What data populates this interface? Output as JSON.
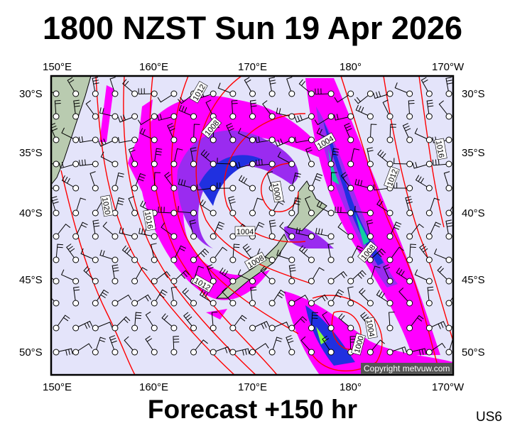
{
  "title": "1800 NZST Sun 19 Apr 2026",
  "footer": "Forecast +150 hr",
  "model_code": "US6",
  "copyright": "Copyright metvuw.com",
  "axes": {
    "longitudes": [
      "150°E",
      "160°E",
      "170°E",
      "180°",
      "170°W"
    ],
    "latitudes": [
      "30°S",
      "35°S",
      "40°S",
      "45°S",
      "50°S"
    ]
  },
  "isobar_labels": [
    "1012",
    "1008",
    "1004",
    "1016",
    "1012",
    "1000",
    "1020",
    "1016",
    "1004",
    "1008",
    "1008",
    "1012",
    "1004",
    "1000"
  ],
  "colors": {
    "ocean": "#e4e4fa",
    "land": "#b9cbb0",
    "isobar": "#ff0000",
    "rain_light": "#ff00ff",
    "rain_moderate": "#9a2bf0",
    "rain_heavy": "#2030e0",
    "rain_very_heavy": "#10d0a0",
    "rain_extreme": "#80ff40"
  }
}
